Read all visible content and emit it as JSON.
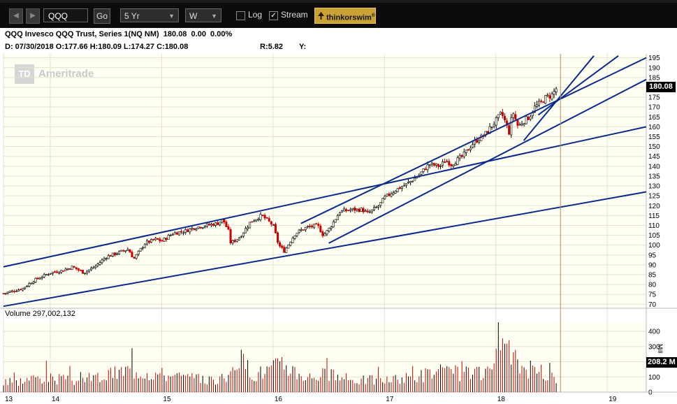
{
  "toolbar": {
    "back_glyph": "◀",
    "forward_glyph": "▶",
    "symbol": "QQQ",
    "go_label": "Go",
    "period": "5 Yr",
    "interval": "W",
    "log_label": "Log",
    "log_checked": false,
    "stream_label": "Stream",
    "stream_checked": true,
    "brand_label": "thinkorswim",
    "brand_mark": "®"
  },
  "header": {
    "title": "QQQ Invesco QQQ Trust, Series 1(NQ NM)  180.08  0.00  0.00%",
    "ohlc": "D: 07/30/2018 O:177.66 H:180.09 L:174.27 C:180.08",
    "range": "R:5.82",
    "y_label": "Y:"
  },
  "watermark": {
    "mark": "TD",
    "text": "Ameritrade"
  },
  "price_marker": "180.08",
  "volume": {
    "label": "Volume 297,002,132",
    "marker": "208.2 M",
    "unit": "Mill"
  },
  "colors": {
    "up": "#000000",
    "down": "#cc0000",
    "trendline": "#0a2a8c",
    "grid": "#e3e3cf"
  },
  "chart_data": {
    "type": "candlestick",
    "price_axis": {
      "ticks": [
        70,
        75,
        80,
        85,
        90,
        95,
        100,
        105,
        110,
        115,
        120,
        125,
        130,
        135,
        140,
        145,
        150,
        155,
        160,
        165,
        170,
        175,
        180,
        185,
        190,
        195
      ],
      "range": [
        68,
        197
      ]
    },
    "volume_axis": {
      "ticks": [
        0,
        100,
        200,
        300,
        400
      ],
      "unit": "Mill",
      "range": [
        0,
        460
      ]
    },
    "x_axis": {
      "ticks": [
        {
          "label": "13",
          "x": 2013.58
        },
        {
          "label": "14",
          "x": 2014.0
        },
        {
          "label": "15",
          "x": 2015.0
        },
        {
          "label": "16",
          "x": 2016.0
        },
        {
          "label": "17",
          "x": 2017.0
        },
        {
          "label": "18",
          "x": 2018.0
        },
        {
          "label": "19",
          "x": 2019.0
        }
      ],
      "range": [
        2013.58,
        2019.35
      ]
    },
    "current_date_x": 2018.58,
    "weekly_close": [
      [
        2013.58,
        75.5
      ],
      [
        2013.75,
        78
      ],
      [
        2013.85,
        82
      ],
      [
        2014.0,
        86
      ],
      [
        2014.1,
        87
      ],
      [
        2014.2,
        89
      ],
      [
        2014.3,
        86
      ],
      [
        2014.4,
        89
      ],
      [
        2014.5,
        94
      ],
      [
        2014.6,
        96
      ],
      [
        2014.7,
        98
      ],
      [
        2014.75,
        93
      ],
      [
        2014.85,
        101
      ],
      [
        2014.95,
        103
      ],
      [
        2015.0,
        102
      ],
      [
        2015.1,
        106
      ],
      [
        2015.2,
        107
      ],
      [
        2015.3,
        109
      ],
      [
        2015.4,
        110
      ],
      [
        2015.5,
        111
      ],
      [
        2015.55,
        113
      ],
      [
        2015.6,
        107
      ],
      [
        2015.62,
        101
      ],
      [
        2015.7,
        104
      ],
      [
        2015.8,
        112
      ],
      [
        2015.9,
        115
      ],
      [
        2016.0,
        110
      ],
      [
        2016.05,
        100
      ],
      [
        2016.1,
        97
      ],
      [
        2016.2,
        106
      ],
      [
        2016.3,
        109
      ],
      [
        2016.4,
        110
      ],
      [
        2016.45,
        105
      ],
      [
        2016.5,
        108
      ],
      [
        2016.6,
        117
      ],
      [
        2016.7,
        118
      ],
      [
        2016.8,
        118
      ],
      [
        2016.85,
        116
      ],
      [
        2016.95,
        120
      ],
      [
        2017.0,
        124
      ],
      [
        2017.1,
        128
      ],
      [
        2017.2,
        131
      ],
      [
        2017.3,
        135
      ],
      [
        2017.4,
        141
      ],
      [
        2017.5,
        140
      ],
      [
        2017.55,
        143
      ],
      [
        2017.6,
        141
      ],
      [
        2017.7,
        145
      ],
      [
        2017.8,
        152
      ],
      [
        2017.9,
        156
      ],
      [
        2018.0,
        163
      ],
      [
        2018.05,
        167
      ],
      [
        2018.08,
        163
      ],
      [
        2018.12,
        157
      ],
      [
        2018.15,
        168
      ],
      [
        2018.2,
        160
      ],
      [
        2018.25,
        163
      ],
      [
        2018.3,
        165
      ],
      [
        2018.35,
        170
      ],
      [
        2018.4,
        172
      ],
      [
        2018.45,
        175
      ],
      [
        2018.5,
        176
      ],
      [
        2018.55,
        180
      ]
    ],
    "weekly_volume": [
      [
        2013.62,
        95
      ],
      [
        2013.9,
        160
      ],
      [
        2014.2,
        120
      ],
      [
        2014.5,
        170
      ],
      [
        2014.72,
        245
      ],
      [
        2015.0,
        190
      ],
      [
        2015.35,
        130
      ],
      [
        2015.6,
        140
      ],
      [
        2015.65,
        385
      ],
      [
        2015.85,
        190
      ],
      [
        2016.1,
        295
      ],
      [
        2016.3,
        160
      ],
      [
        2016.45,
        190
      ],
      [
        2016.7,
        130
      ],
      [
        2017.1,
        130
      ],
      [
        2017.45,
        210
      ],
      [
        2017.75,
        200
      ],
      [
        2017.9,
        180
      ],
      [
        2018.1,
        460
      ],
      [
        2018.2,
        290
      ],
      [
        2018.35,
        220
      ],
      [
        2018.5,
        170
      ],
      [
        2018.56,
        150
      ]
    ],
    "trendlines": [
      {
        "name": "lower-channel",
        "from": [
          2013.58,
          69
        ],
        "to": [
          2019.35,
          127
        ]
      },
      {
        "name": "upper-channel",
        "from": [
          2013.58,
          89
        ],
        "to": [
          2019.35,
          160
        ]
      },
      {
        "name": "steep-channel-top",
        "from": [
          2016.25,
          111
        ],
        "to": [
          2019.35,
          195
        ]
      },
      {
        "name": "steep-channel-bottom",
        "from": [
          2016.5,
          101
        ],
        "to": [
          2019.35,
          184
        ]
      },
      {
        "name": "fan-line-1",
        "from": [
          2018.25,
          153
        ],
        "to": [
          2018.88,
          196
        ]
      },
      {
        "name": "fan-line-2",
        "from": [
          2018.38,
          166
        ],
        "to": [
          2019.1,
          196
        ]
      }
    ]
  }
}
